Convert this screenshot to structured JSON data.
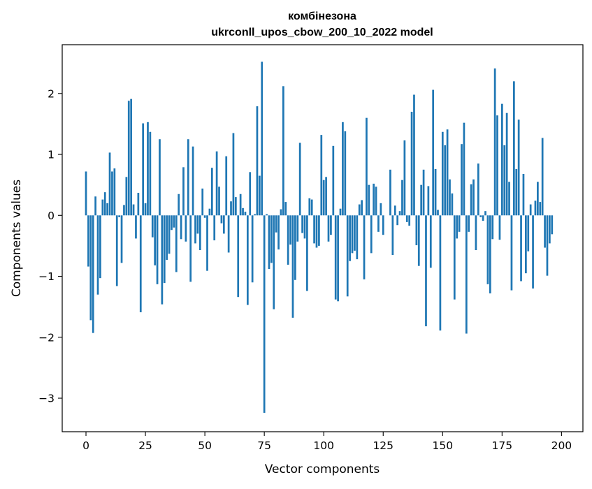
{
  "chart_data": {
    "type": "bar",
    "title_line1": "комбінезона",
    "title_line2": "ukrconll_upos_cbow_200_10_2022 model",
    "xlabel": "Vector components",
    "ylabel": "Components values",
    "xlim": [
      -10,
      209
    ],
    "ylim": [
      -3.55,
      2.8
    ],
    "x_ticks": [
      0,
      25,
      50,
      75,
      100,
      125,
      150,
      175,
      200
    ],
    "x_tick_labels": [
      "0",
      "25",
      "50",
      "75",
      "100",
      "125",
      "150",
      "175",
      "200"
    ],
    "y_ticks": [
      -3,
      -2,
      -1,
      0,
      1,
      2
    ],
    "y_tick_labels": [
      "−3",
      "−2",
      "−1",
      "0",
      "1",
      "2"
    ],
    "bar_color": "#1f77b4",
    "grid": false,
    "values": [
      0.72,
      -0.84,
      -1.72,
      -1.93,
      0.31,
      -1.3,
      -1.03,
      0.26,
      0.38,
      0.2,
      1.03,
      0.72,
      0.77,
      -1.16,
      -0.03,
      -0.78,
      0.17,
      0.63,
      1.88,
      1.91,
      0.18,
      -0.38,
      0.37,
      -1.59,
      1.51,
      0.2,
      1.53,
      1.37,
      -0.36,
      -0.82,
      -1.13,
      1.25,
      -1.46,
      -1.11,
      -0.73,
      -0.63,
      -0.24,
      -0.2,
      -0.93,
      0.35,
      -0.39,
      0.79,
      -0.43,
      1.25,
      -1.09,
      1.13,
      -0.46,
      -0.3,
      -0.57,
      0.44,
      -0.04,
      -0.91,
      0.11,
      0.78,
      -0.41,
      1.05,
      0.47,
      -0.13,
      -0.3,
      0.97,
      -0.61,
      0.23,
      1.35,
      0.3,
      -1.34,
      0.35,
      0.12,
      0.06,
      -1.47,
      0.71,
      -1.1,
      0.02,
      1.79,
      0.65,
      2.52,
      -3.24,
      0.02,
      -0.88,
      -0.78,
      -1.54,
      -0.28,
      -0.56,
      0.1,
      2.12,
      0.22,
      -0.81,
      -0.48,
      -1.68,
      -1.06,
      -0.43,
      1.19,
      -0.29,
      -0.38,
      -1.24,
      0.28,
      0.26,
      -0.46,
      -0.53,
      -0.5,
      1.32,
      0.58,
      0.63,
      -0.43,
      -0.32,
      1.14,
      -1.38,
      -1.41,
      0.11,
      1.53,
      1.38,
      -1.33,
      -0.75,
      -0.62,
      -0.58,
      -0.72,
      0.18,
      0.25,
      -1.05,
      1.6,
      0.5,
      -0.62,
      0.52,
      0.47,
      -0.27,
      0.2,
      -0.32,
      0.0,
      0.0,
      0.75,
      -0.65,
      0.16,
      -0.16,
      0.07,
      0.58,
      1.23,
      -0.11,
      -0.17,
      1.7,
      1.98,
      -0.49,
      -0.83,
      0.5,
      0.75,
      -1.82,
      0.48,
      -0.86,
      2.06,
      0.76,
      0.09,
      -1.89,
      1.37,
      1.15,
      1.41,
      0.59,
      0.36,
      -1.38,
      -0.38,
      -0.27,
      1.17,
      1.52,
      -1.94,
      -0.27,
      0.51,
      0.59,
      -0.57,
      0.85,
      -0.03,
      -0.09,
      0.07,
      -1.13,
      -1.28,
      -0.39,
      2.41,
      1.64,
      -0.4,
      1.83,
      1.15,
      1.68,
      0.55,
      -1.23,
      2.2,
      0.76,
      1.57,
      -1.08,
      0.68,
      -0.95,
      -0.59,
      0.18,
      -1.2,
      0.24,
      0.55,
      0.22,
      1.27,
      -0.53,
      -0.99,
      -0.46,
      -0.31
    ]
  }
}
